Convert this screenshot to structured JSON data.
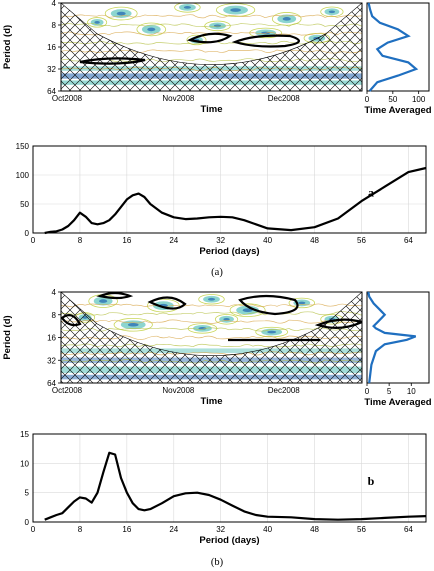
{
  "chart_data": [
    {
      "id": "a-wavelet",
      "type": "heatmap",
      "ylabel": "Period (d)",
      "xlabel": "Time",
      "y_ticks": [
        "4",
        "8",
        "16",
        "32",
        "64"
      ],
      "x_ticks": [
        "Oct2008",
        "Nov2008",
        "Dec2008"
      ],
      "y_log2_range": [
        2,
        6
      ],
      "colors": {
        "high": "#1f63b0",
        "mid": "#2fb3a8",
        "low": "#c9d65a",
        "background": "#ffffff"
      }
    },
    {
      "id": "a-time-averaged",
      "type": "line",
      "xlabel": "Time Averaged",
      "x_ticks": [
        "0",
        "50",
        "100"
      ],
      "xlim": [
        0,
        120
      ],
      "ylim_log2": [
        2,
        6
      ],
      "x": [
        3,
        6,
        10,
        25,
        60,
        80,
        40,
        20,
        30,
        80,
        95,
        60,
        20,
        5
      ],
      "y_log2": [
        2,
        2.3,
        2.6,
        2.9,
        3.2,
        3.5,
        3.8,
        4.1,
        4.4,
        4.7,
        5.0,
        5.3,
        5.6,
        6.0
      ]
    },
    {
      "id": "a-spectrum",
      "type": "line",
      "xlabel": "Period (days)",
      "x_ticks": [
        "0",
        "8",
        "16",
        "24",
        "32",
        "40",
        "48",
        "56",
        "64"
      ],
      "y_ticks": [
        "0",
        "50",
        "100",
        "150"
      ],
      "xlim": [
        0,
        67
      ],
      "ylim": [
        0,
        150
      ],
      "x": [
        2,
        3,
        4,
        5,
        6,
        7,
        8,
        9,
        10,
        11,
        12,
        13,
        14,
        15,
        16,
        17,
        18,
        19,
        20,
        22,
        24,
        26,
        28,
        30,
        32,
        34,
        36,
        38,
        40,
        44,
        48,
        52,
        56,
        60,
        64,
        67
      ],
      "y": [
        0,
        2,
        3,
        6,
        12,
        22,
        35,
        28,
        17,
        15,
        17,
        22,
        32,
        45,
        58,
        65,
        68,
        62,
        50,
        35,
        27,
        24,
        25,
        27,
        28,
        27,
        22,
        15,
        8,
        5,
        10,
        25,
        55,
        80,
        105,
        112
      ],
      "annotation": "a"
    },
    {
      "id": "b-wavelet",
      "type": "heatmap",
      "ylabel": "Period (d)",
      "xlabel": "Time",
      "y_ticks": [
        "4",
        "8",
        "16",
        "32",
        "64"
      ],
      "x_ticks": [
        "Oct2008",
        "Nov2008",
        "Dec2008"
      ],
      "y_log2_range": [
        2,
        6
      ],
      "colors": {
        "high": "#1f63b0",
        "mid": "#2fb3a8",
        "low": "#c9d65a",
        "background": "#ffffff"
      }
    },
    {
      "id": "b-time-averaged",
      "type": "line",
      "xlabel": "Time Averaged",
      "x_ticks": [
        "0",
        "5",
        "10"
      ],
      "xlim": [
        0,
        14
      ],
      "ylim_log2": [
        2,
        6
      ],
      "x": [
        0.3,
        0.5,
        1.5,
        3,
        4,
        2.5,
        1.5,
        2,
        4,
        11,
        9,
        4,
        2,
        1,
        0.5
      ],
      "y_log2": [
        2,
        2.2,
        2.5,
        2.8,
        3.0,
        3.3,
        3.5,
        3.6,
        3.8,
        3.95,
        4.1,
        4.3,
        4.6,
        5.2,
        6.0
      ]
    },
    {
      "id": "b-spectrum",
      "type": "line",
      "xlabel": "Period (days)",
      "x_ticks": [
        "0",
        "8",
        "16",
        "24",
        "32",
        "40",
        "48",
        "56",
        "64"
      ],
      "y_ticks": [
        "0",
        "5",
        "10",
        "15"
      ],
      "xlim": [
        0,
        67
      ],
      "ylim": [
        0,
        15
      ],
      "x": [
        2,
        3,
        4,
        5,
        6,
        7,
        8,
        9,
        10,
        11,
        12,
        13,
        14,
        15,
        16,
        17,
        18,
        19,
        20,
        22,
        24,
        26,
        28,
        30,
        32,
        34,
        36,
        38,
        40,
        44,
        48,
        52,
        56,
        60,
        64,
        67
      ],
      "y": [
        0.4,
        0.8,
        1.2,
        1.5,
        2.5,
        3.5,
        4.2,
        4.0,
        3.3,
        5.0,
        8.5,
        11.8,
        11.5,
        7.5,
        5.0,
        3.2,
        2.2,
        2.0,
        2.2,
        3.2,
        4.4,
        4.9,
        5.0,
        4.6,
        3.8,
        2.8,
        1.8,
        1.2,
        0.9,
        0.8,
        0.5,
        0.4,
        0.5,
        0.7,
        0.9,
        1.0
      ],
      "annotation": "b"
    }
  ],
  "captions": {
    "a": "(a)",
    "b": "(b)"
  }
}
